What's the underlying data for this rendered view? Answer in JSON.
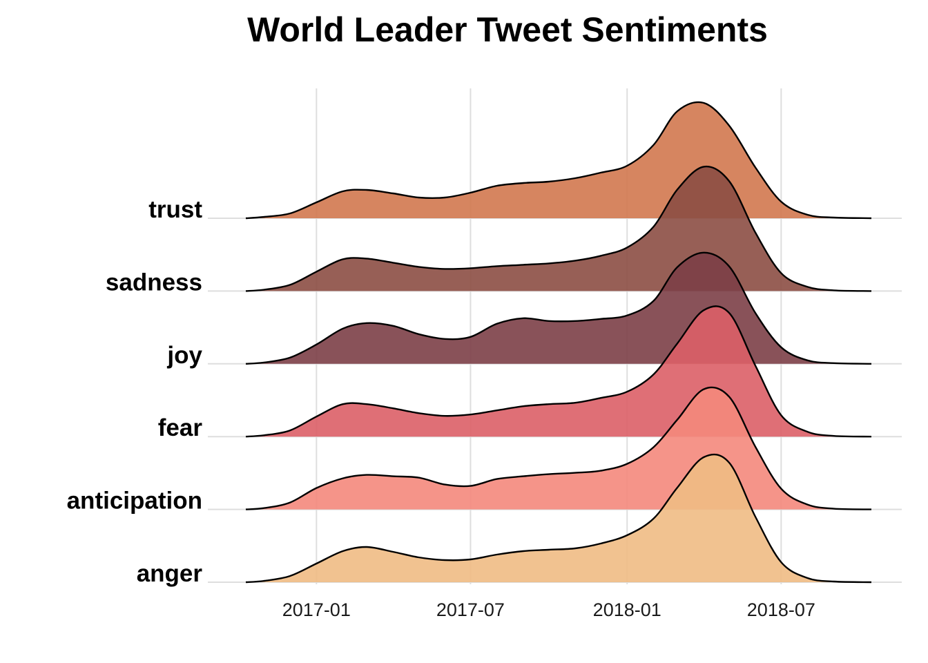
{
  "chart_data": {
    "type": "ridgeline",
    "title": "World Leader Tweet Sentiments",
    "xlabel": "",
    "ylabel": "",
    "x_ticks": [
      "2017-01",
      "2017-07",
      "2018-01",
      "2018-07"
    ],
    "xlim": [
      "2016-10-10",
      "2018-10-15"
    ],
    "x": [
      "2016-10-10",
      "2016-11-01",
      "2016-12-01",
      "2017-01-01",
      "2017-02-01",
      "2017-03-01",
      "2017-04-01",
      "2017-05-01",
      "2017-06-01",
      "2017-07-01",
      "2017-08-01",
      "2017-09-01",
      "2017-10-01",
      "2017-11-01",
      "2017-12-01",
      "2018-01-01",
      "2018-02-01",
      "2018-03-01",
      "2018-04-01",
      "2018-05-01",
      "2018-06-01",
      "2018-07-01",
      "2018-08-01",
      "2018-09-01",
      "2018-10-15"
    ],
    "series": [
      {
        "name": "anger",
        "color": "#f0bb84",
        "values": [
          0.0,
          0.02,
          0.09,
          0.27,
          0.45,
          0.51,
          0.44,
          0.36,
          0.32,
          0.33,
          0.4,
          0.45,
          0.47,
          0.49,
          0.56,
          0.68,
          0.92,
          1.37,
          1.81,
          1.73,
          0.94,
          0.29,
          0.06,
          0.01,
          0.0
        ]
      },
      {
        "name": "anticipation",
        "color": "#f4887c",
        "values": [
          0.0,
          0.02,
          0.1,
          0.31,
          0.45,
          0.5,
          0.48,
          0.46,
          0.36,
          0.34,
          0.44,
          0.48,
          0.51,
          0.53,
          0.56,
          0.66,
          0.9,
          1.3,
          1.74,
          1.63,
          0.9,
          0.3,
          0.07,
          0.01,
          0.0
        ]
      },
      {
        "name": "fear",
        "color": "#dc5f67",
        "values": [
          0.0,
          0.02,
          0.09,
          0.29,
          0.47,
          0.47,
          0.41,
          0.34,
          0.3,
          0.32,
          0.38,
          0.44,
          0.47,
          0.49,
          0.56,
          0.65,
          0.9,
          1.35,
          1.83,
          1.79,
          1.02,
          0.31,
          0.07,
          0.01,
          0.0
        ]
      },
      {
        "name": "joy",
        "color": "#7c3f47",
        "values": [
          0.0,
          0.02,
          0.09,
          0.28,
          0.51,
          0.59,
          0.55,
          0.43,
          0.36,
          0.39,
          0.58,
          0.66,
          0.62,
          0.62,
          0.65,
          0.7,
          0.91,
          1.4,
          1.61,
          1.41,
          0.73,
          0.24,
          0.05,
          0.01,
          0.0
        ]
      },
      {
        "name": "sadness",
        "color": "#8c4e44",
        "values": [
          0.0,
          0.02,
          0.09,
          0.28,
          0.46,
          0.47,
          0.41,
          0.35,
          0.32,
          0.33,
          0.36,
          0.38,
          0.4,
          0.44,
          0.51,
          0.63,
          0.93,
          1.47,
          1.8,
          1.59,
          0.84,
          0.26,
          0.06,
          0.01,
          0.0
        ]
      },
      {
        "name": "trust",
        "color": "#d2784f",
        "values": [
          0.0,
          0.02,
          0.07,
          0.23,
          0.39,
          0.41,
          0.36,
          0.3,
          0.3,
          0.37,
          0.47,
          0.51,
          0.53,
          0.58,
          0.66,
          0.76,
          1.06,
          1.55,
          1.67,
          1.34,
          0.73,
          0.24,
          0.05,
          0.01,
          0.0
        ]
      }
    ],
    "grid": true,
    "legend": "none"
  }
}
